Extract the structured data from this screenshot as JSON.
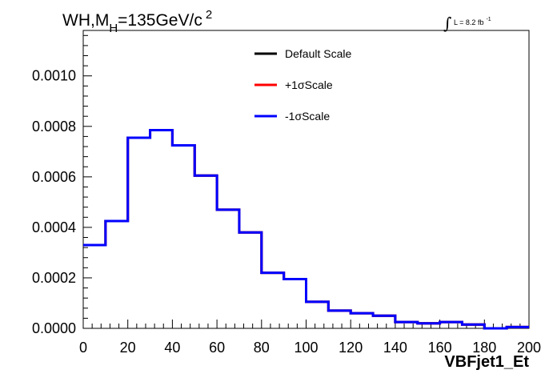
{
  "chart_data": {
    "type": "line",
    "step": true,
    "title": {
      "main": "WH,M",
      "sub": "H",
      "rest": "=135GeV/c",
      "sup": "2"
    },
    "lumi": {
      "integral_symbol": "∫",
      "label": "L = 8.2 fb",
      "sup": "-1"
    },
    "xlabel": "VBFjet1_Et",
    "ylabel": "",
    "xlim": [
      0,
      200
    ],
    "ylim": [
      0,
      0.00118
    ],
    "x_ticks": [
      "0",
      "20",
      "40",
      "60",
      "80",
      "100",
      "120",
      "140",
      "160",
      "180",
      "200"
    ],
    "y_ticks": [
      "0.0000",
      "0.0002",
      "0.0004",
      "0.0006",
      "0.0008",
      "0.0010"
    ],
    "grid": false,
    "legend_position": "top-center",
    "bin_edges": [
      0,
      10,
      20,
      30,
      40,
      50,
      60,
      70,
      80,
      90,
      100,
      110,
      120,
      130,
      140,
      150,
      160,
      170,
      180,
      190,
      200
    ],
    "series": [
      {
        "name": "Default Scale",
        "color": "#000000",
        "values": [
          0.00033,
          0.000425,
          0.000755,
          0.000785,
          0.000725,
          0.000605,
          0.00047,
          0.00038,
          0.00022,
          0.000195,
          0.000105,
          7e-05,
          6e-05,
          5e-05,
          2.5e-05,
          2e-05,
          2.5e-05,
          1.5e-05,
          0.0,
          5e-06
        ]
      },
      {
        "name": "+1σScale",
        "color": "#ff0000",
        "values": [
          0.00033,
          0.000425,
          0.000755,
          0.000785,
          0.000725,
          0.000605,
          0.00047,
          0.00038,
          0.00022,
          0.000195,
          0.000105,
          7e-05,
          6e-05,
          5e-05,
          2.5e-05,
          2e-05,
          2.5e-05,
          1.5e-05,
          0.0,
          5e-06
        ]
      },
      {
        "name": "-1σScale",
        "color": "#0000ff",
        "values": [
          0.00033,
          0.000425,
          0.000755,
          0.000785,
          0.000725,
          0.000605,
          0.00047,
          0.00038,
          0.00022,
          0.000195,
          0.000105,
          7e-05,
          6e-05,
          5e-05,
          2.5e-05,
          2e-05,
          2.5e-05,
          1.5e-05,
          0.0,
          5e-06
        ]
      }
    ]
  }
}
